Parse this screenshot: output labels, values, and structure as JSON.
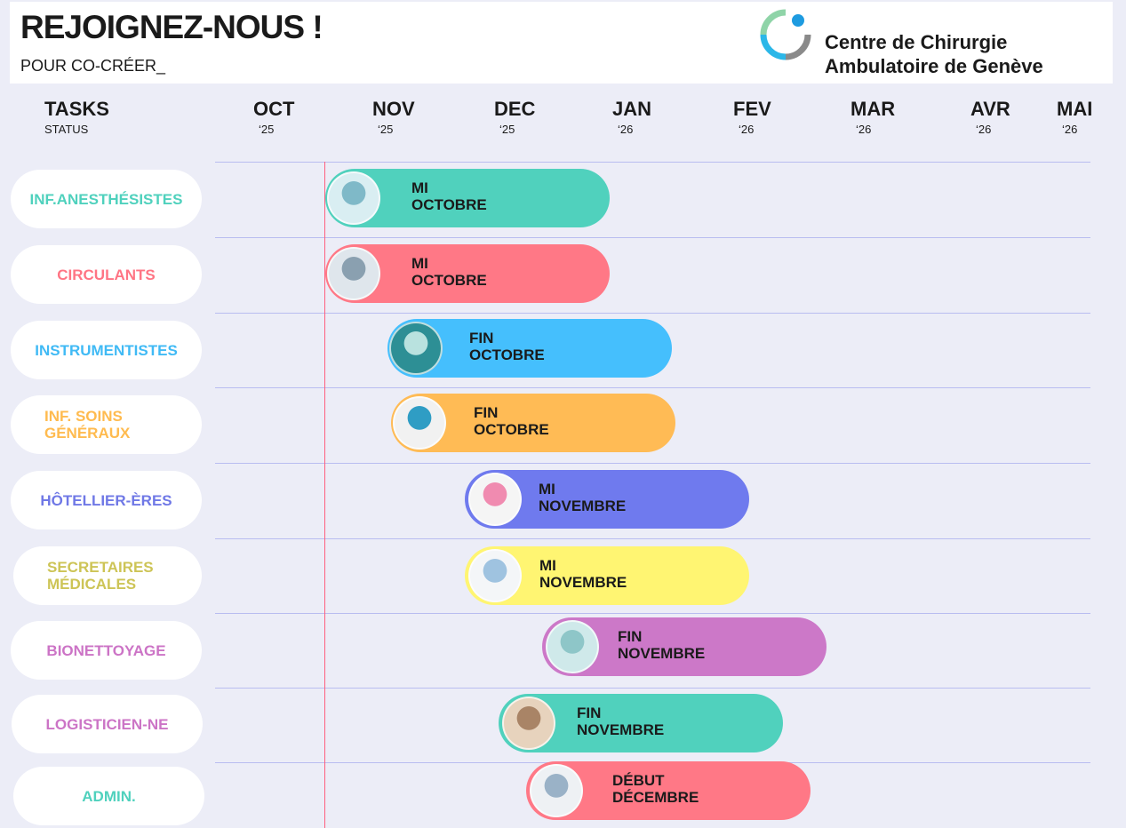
{
  "header": {
    "title": "REJOIGNEZ-NOUS !",
    "subtitle": "POUR CO-CRÉER_",
    "org_line1": "Centre de Chirurgie",
    "org_line2": "Ambulatoire de Genève"
  },
  "columns": {
    "tasks_label": "TASKS",
    "status_label": "STATUS",
    "months": [
      {
        "m": "OCT",
        "y": "‘25"
      },
      {
        "m": "NOV",
        "y": "‘25"
      },
      {
        "m": "DEC",
        "y": "‘25"
      },
      {
        "m": "JAN",
        "y": "‘26"
      },
      {
        "m": "FEV",
        "y": "‘26"
      },
      {
        "m": "MAR",
        "y": "‘26"
      },
      {
        "m": "AVR",
        "y": "‘26"
      },
      {
        "m": "MAI",
        "y": "‘26"
      }
    ]
  },
  "rows": [
    {
      "label": "INF.ANESTHÉSISTES",
      "color": "#4fd1bd",
      "bar_color": "#50d1bd",
      "status1": "MI",
      "status2": "OCTOBRE"
    },
    {
      "label": "CIRCULANTS",
      "color": "#ff7584",
      "bar_color": "#ff7886",
      "status1": "MI",
      "status2": "OCTOBRE"
    },
    {
      "label": "INSTRUMENTISTES",
      "color": "#40baf5",
      "bar_color": "#45bffd",
      "status1": "FIN",
      "status2": "OCTOBRE"
    },
    {
      "label1": "INF. SOINS",
      "label2": "GÉNÉRAUX",
      "color": "#ffbb4f",
      "bar_color": "#ffbb55",
      "status1": "FIN",
      "status2": "OCTOBRE"
    },
    {
      "label": "HÔTELLIER-ÈRES",
      "color": "#6f78e6",
      "bar_color": "#6f7aee",
      "status1": "MI",
      "status2": "NOVEMBRE"
    },
    {
      "label1": "SECRETAIRES",
      "label2": "MÉDICALES",
      "color": "#cdc456",
      "bar_color": "#fff572",
      "status1": "MI",
      "status2": "NOVEMBRE"
    },
    {
      "label": "BIONETTOYAGE",
      "color": "#cc74c6",
      "bar_color": "#cc78c8",
      "status1": "FIN",
      "status2": "NOVEMBRE"
    },
    {
      "label": "LOGISTICIEN-NE",
      "color": "#cc74c6",
      "bar_color": "#50d1bd",
      "status1": "FIN",
      "status2": "NOVEMBRE"
    },
    {
      "label": "ADMIN.",
      "color": "#4fd1bd",
      "bar_color": "#ff7886",
      "status1": "DÉBUT",
      "status2": "DÉCEMBRE"
    }
  ]
}
